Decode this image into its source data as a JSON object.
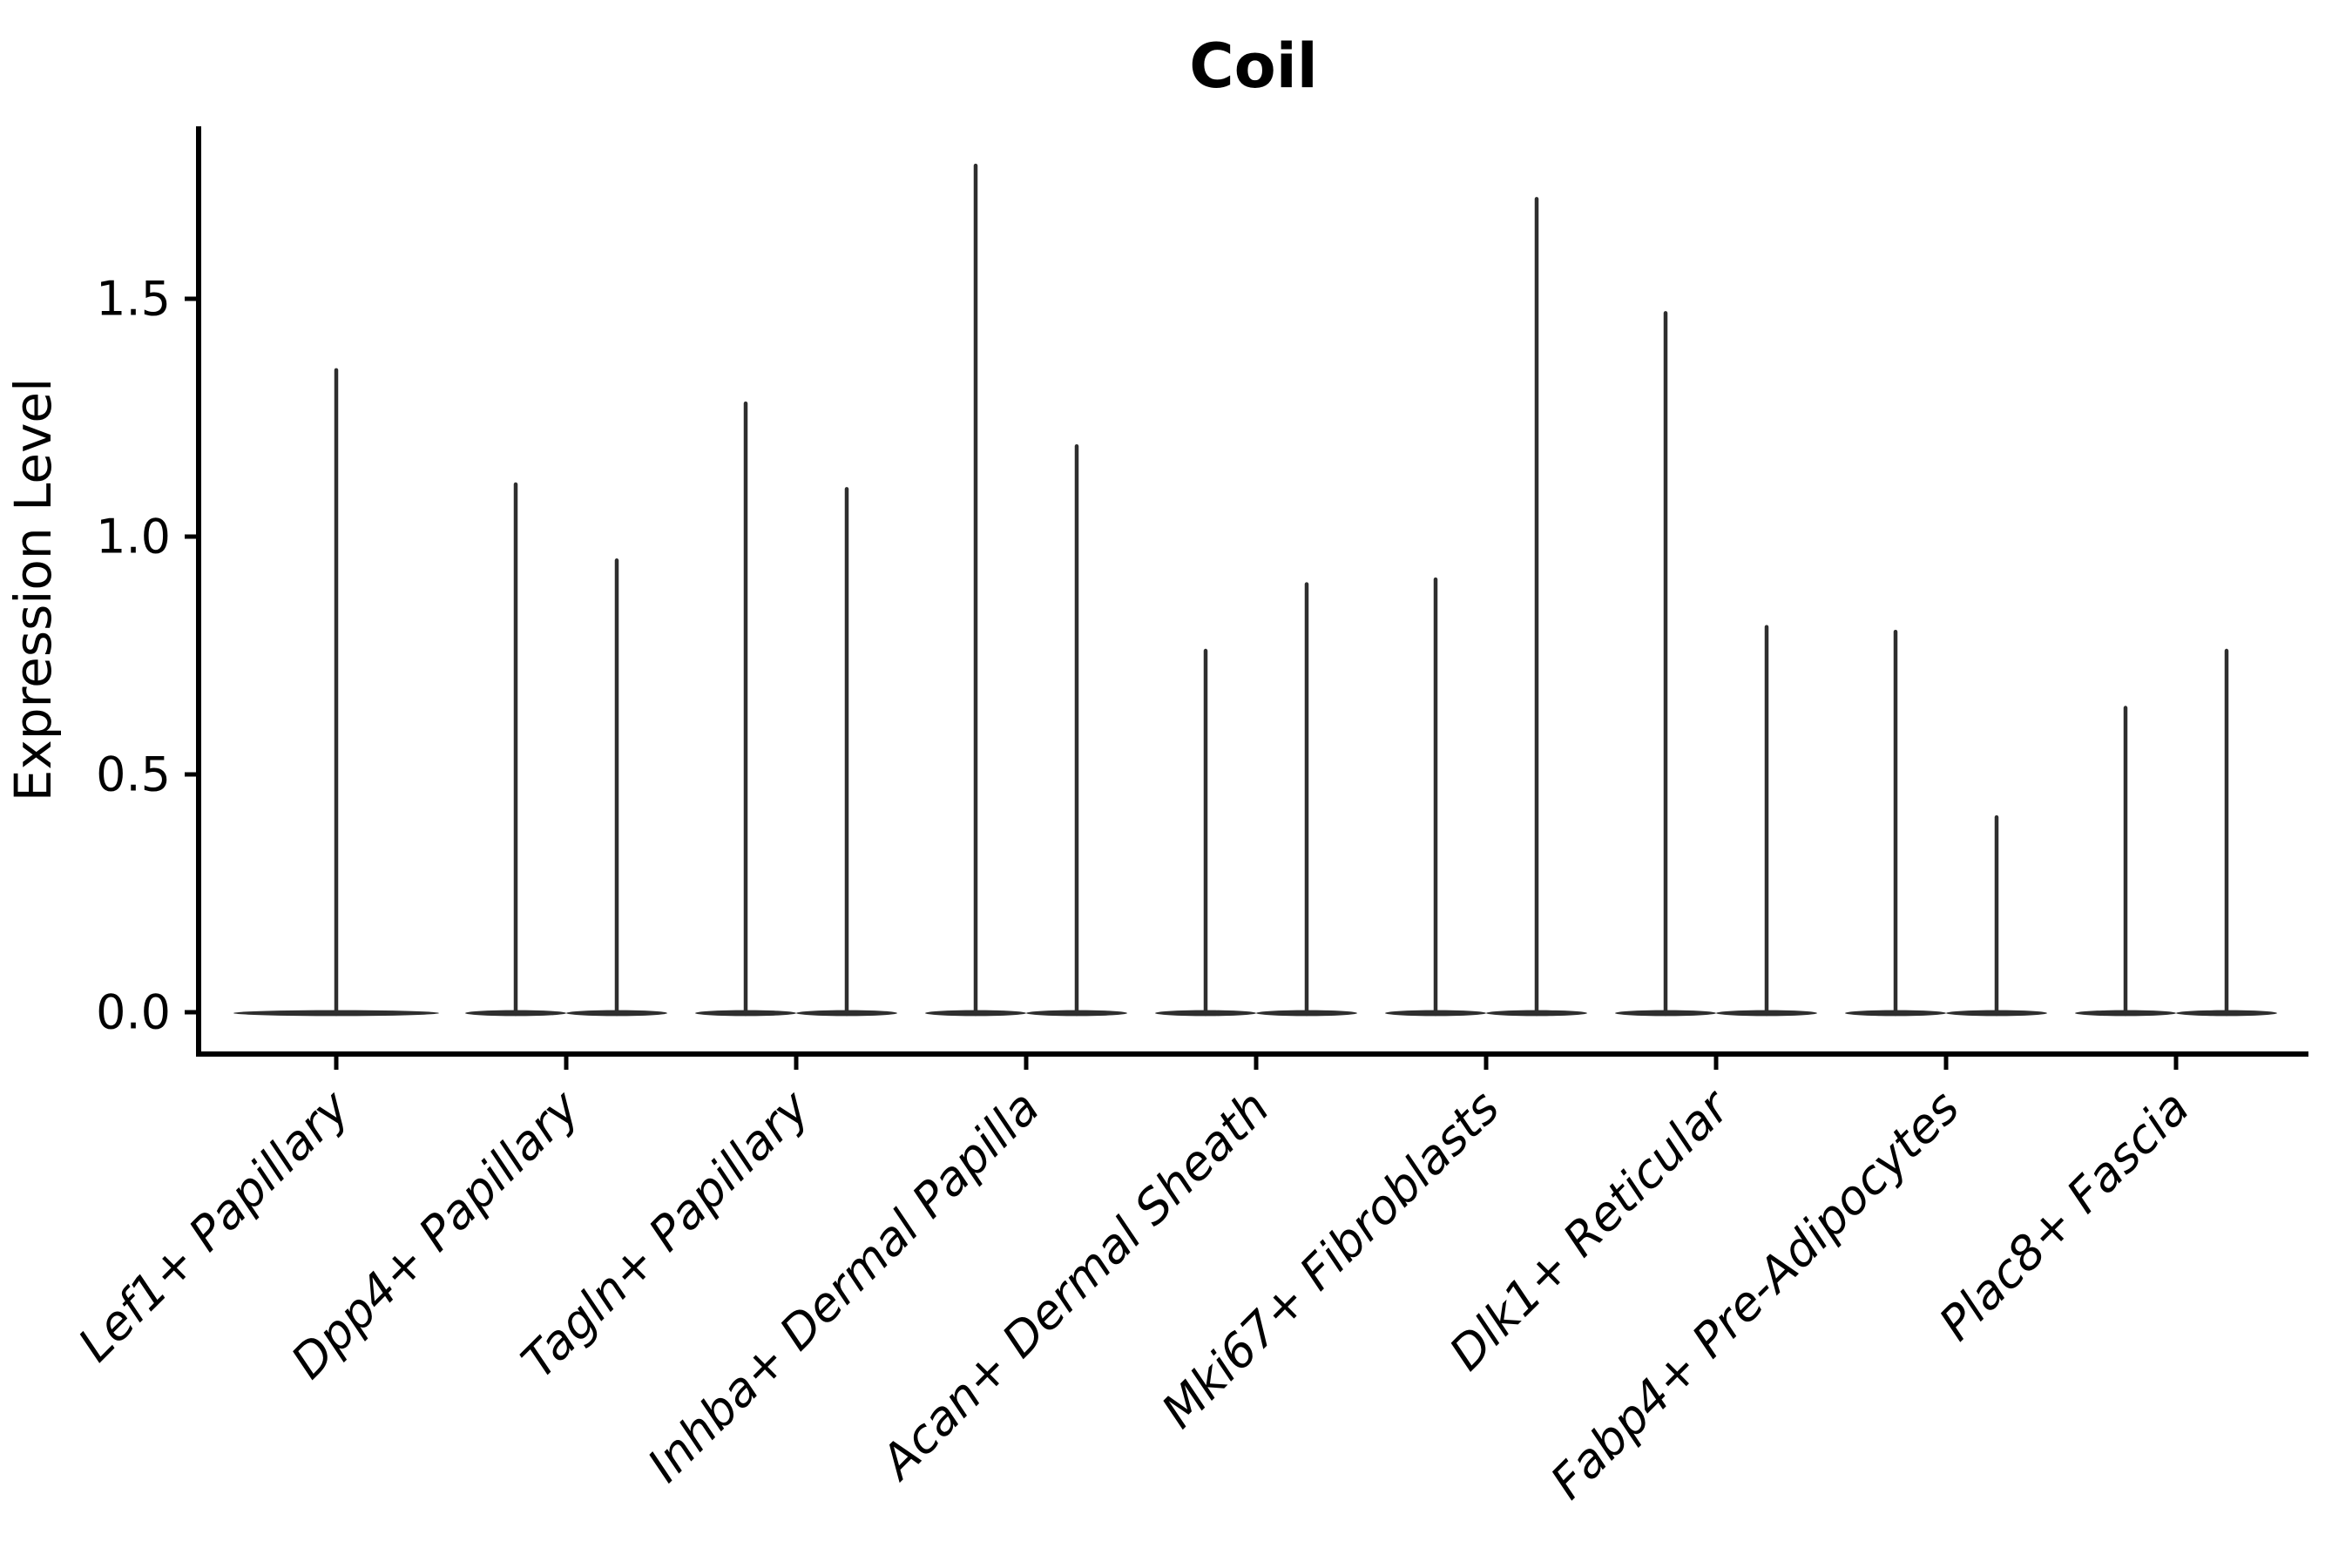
{
  "figure": {
    "background": "#ffffff"
  },
  "chart_data": {
    "type": "violin",
    "title": "Coil",
    "ylabel": "Expression Level",
    "xlabel": "",
    "grid": false,
    "legend": "none",
    "ylim": [
      -0.09,
      1.86
    ],
    "y_ticks": [
      {
        "value": 0.0,
        "label": "0.0"
      },
      {
        "value": 0.5,
        "label": "0.5"
      },
      {
        "value": 1.0,
        "label": "1.0"
      },
      {
        "value": 1.5,
        "label": "1.5"
      }
    ],
    "violin_color": "#2e2e2e",
    "axis_color": "#000000",
    "categories": [
      {
        "label": "Lef1+ Papillary",
        "violin_max": [
          1.35
        ]
      },
      {
        "label": "Dpp4+ Papillary",
        "violin_max": [
          1.11,
          0.95
        ]
      },
      {
        "label": "Tagln+ Papillary",
        "violin_max": [
          1.28,
          1.1
        ]
      },
      {
        "label": "Inhba+ Dermal Papilla",
        "violin_max": [
          1.78,
          1.19
        ]
      },
      {
        "label": "Acan+ Dermal Sheath",
        "violin_max": [
          0.76,
          0.9
        ]
      },
      {
        "label": "Mki67+ Fibroblasts",
        "violin_max": [
          0.91,
          1.71
        ]
      },
      {
        "label": "Dlk1+ Reticular",
        "violin_max": [
          1.47,
          0.81
        ]
      },
      {
        "label": "Fabp4+ Pre-Adipocytes",
        "violin_max": [
          0.8,
          0.41
        ]
      },
      {
        "label": "Plac8+ Fascia",
        "violin_max": [
          0.64,
          0.76
        ]
      }
    ]
  }
}
